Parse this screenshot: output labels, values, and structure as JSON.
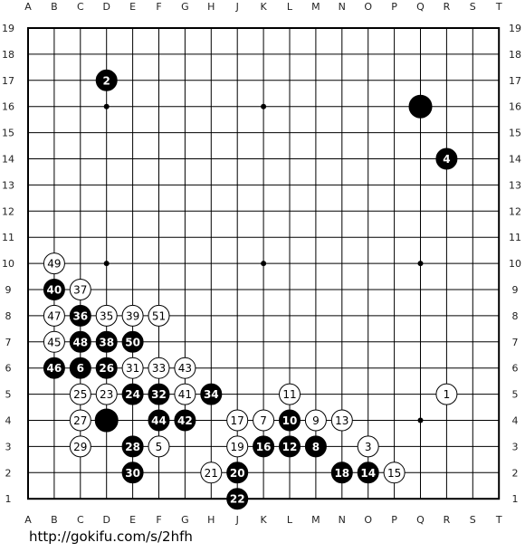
{
  "board": {
    "size": 19,
    "columns": [
      "A",
      "B",
      "C",
      "D",
      "E",
      "F",
      "G",
      "H",
      "J",
      "K",
      "L",
      "M",
      "N",
      "O",
      "P",
      "Q",
      "R",
      "S",
      "T"
    ],
    "rows": [
      "19",
      "18",
      "17",
      "16",
      "15",
      "14",
      "13",
      "12",
      "11",
      "10",
      "9",
      "8",
      "7",
      "6",
      "5",
      "4",
      "3",
      "2",
      "1"
    ],
    "hoshi": [
      "D16",
      "K16",
      "Q16",
      "D10",
      "K10",
      "Q10",
      "D4",
      "K4",
      "Q4"
    ],
    "colors": {
      "background": "#ffffff",
      "line": "#000000",
      "black_stone": "#000000",
      "white_stone": "#ffffff"
    }
  },
  "stones": [
    {
      "pos": "Q16",
      "color": "black",
      "label": ""
    },
    {
      "pos": "D4",
      "color": "black",
      "label": ""
    },
    {
      "pos": "R5",
      "color": "white",
      "label": "1"
    },
    {
      "pos": "D17",
      "color": "black",
      "label": "2"
    },
    {
      "pos": "O3",
      "color": "white",
      "label": "3"
    },
    {
      "pos": "R14",
      "color": "black",
      "label": "4"
    },
    {
      "pos": "F3",
      "color": "white",
      "label": "5"
    },
    {
      "pos": "C6",
      "color": "black",
      "label": "6"
    },
    {
      "pos": "K4",
      "color": "white",
      "label": "7"
    },
    {
      "pos": "M3",
      "color": "black",
      "label": "8"
    },
    {
      "pos": "M4",
      "color": "white",
      "label": "9"
    },
    {
      "pos": "L4",
      "color": "black",
      "label": "10"
    },
    {
      "pos": "L5",
      "color": "white",
      "label": "11"
    },
    {
      "pos": "L3",
      "color": "black",
      "label": "12"
    },
    {
      "pos": "N4",
      "color": "white",
      "label": "13"
    },
    {
      "pos": "O2",
      "color": "black",
      "label": "14"
    },
    {
      "pos": "P2",
      "color": "white",
      "label": "15"
    },
    {
      "pos": "K3",
      "color": "black",
      "label": "16"
    },
    {
      "pos": "J4",
      "color": "white",
      "label": "17"
    },
    {
      "pos": "N2",
      "color": "black",
      "label": "18"
    },
    {
      "pos": "J3",
      "color": "white",
      "label": "19"
    },
    {
      "pos": "J2",
      "color": "black",
      "label": "20"
    },
    {
      "pos": "H2",
      "color": "white",
      "label": "21"
    },
    {
      "pos": "J1",
      "color": "black",
      "label": "22"
    },
    {
      "pos": "D5",
      "color": "white",
      "label": "23"
    },
    {
      "pos": "E5",
      "color": "black",
      "label": "24"
    },
    {
      "pos": "C5",
      "color": "white",
      "label": "25"
    },
    {
      "pos": "D6",
      "color": "black",
      "label": "26"
    },
    {
      "pos": "C4",
      "color": "white",
      "label": "27"
    },
    {
      "pos": "E3",
      "color": "black",
      "label": "28"
    },
    {
      "pos": "C3",
      "color": "white",
      "label": "29"
    },
    {
      "pos": "E2",
      "color": "black",
      "label": "30"
    },
    {
      "pos": "E6",
      "color": "white",
      "label": "31"
    },
    {
      "pos": "F5",
      "color": "black",
      "label": "32"
    },
    {
      "pos": "F6",
      "color": "white",
      "label": "33"
    },
    {
      "pos": "H5",
      "color": "black",
      "label": "34"
    },
    {
      "pos": "D8",
      "color": "white",
      "label": "35"
    },
    {
      "pos": "C8",
      "color": "black",
      "label": "36"
    },
    {
      "pos": "C9",
      "color": "white",
      "label": "37"
    },
    {
      "pos": "D7",
      "color": "black",
      "label": "38"
    },
    {
      "pos": "E8",
      "color": "white",
      "label": "39"
    },
    {
      "pos": "B9",
      "color": "black",
      "label": "40"
    },
    {
      "pos": "G5",
      "color": "white",
      "label": "41"
    },
    {
      "pos": "G4",
      "color": "black",
      "label": "42"
    },
    {
      "pos": "G6",
      "color": "white",
      "label": "43"
    },
    {
      "pos": "F4",
      "color": "black",
      "label": "44"
    },
    {
      "pos": "B7",
      "color": "white",
      "label": "45"
    },
    {
      "pos": "B6",
      "color": "black",
      "label": "46"
    },
    {
      "pos": "B8",
      "color": "white",
      "label": "47"
    },
    {
      "pos": "C7",
      "color": "black",
      "label": "48"
    },
    {
      "pos": "B10",
      "color": "white",
      "label": "49"
    },
    {
      "pos": "E7",
      "color": "black",
      "label": "50"
    },
    {
      "pos": "F8",
      "color": "white",
      "label": "51"
    }
  ],
  "footer": {
    "url": "http://gokifu.com/s/2hfh"
  }
}
